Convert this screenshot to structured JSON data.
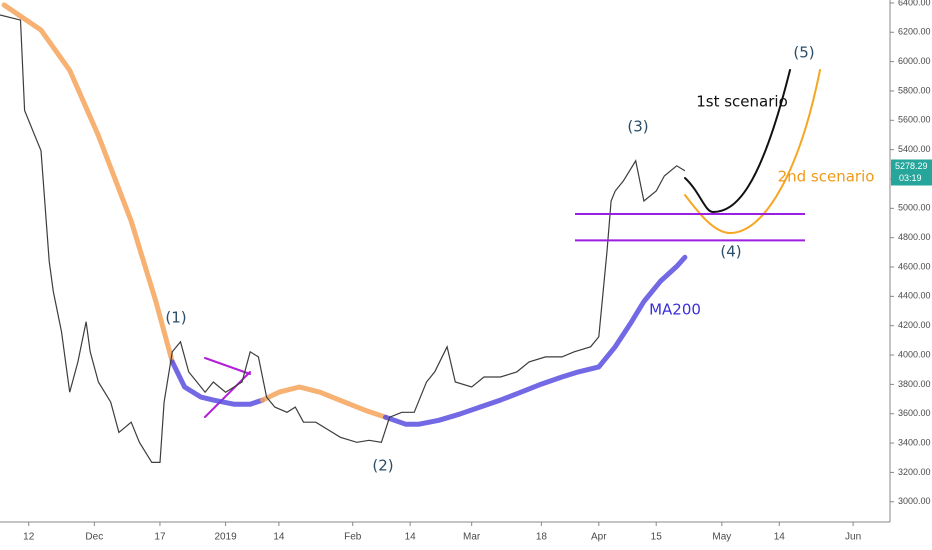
{
  "chart_data": {
    "type": "line",
    "xlim": [
      0,
      217
    ],
    "xticks": [
      {
        "value": 7,
        "label": "12"
      },
      {
        "value": 23,
        "label": "Dec"
      },
      {
        "value": 39,
        "label": "17"
      },
      {
        "value": 55,
        "label": "2019"
      },
      {
        "value": 68,
        "label": "14"
      },
      {
        "value": 86,
        "label": "Feb"
      },
      {
        "value": 100,
        "label": "14"
      },
      {
        "value": 115,
        "label": "Mar"
      },
      {
        "value": 132,
        "label": "18"
      },
      {
        "value": 146,
        "label": "Apr"
      },
      {
        "value": 160,
        "label": "15"
      },
      {
        "value": 176,
        "label": "May"
      },
      {
        "value": 190,
        "label": "14"
      },
      {
        "value": 208,
        "label": "Jun"
      }
    ],
    "ylim": [
      2862,
      6420
    ],
    "yticks": [
      {
        "value": 3000,
        "label": "3000.00"
      },
      {
        "value": 3200,
        "label": "3200.00"
      },
      {
        "value": 3400,
        "label": "3400.00"
      },
      {
        "value": 3600,
        "label": "3600.00"
      },
      {
        "value": 3800,
        "label": "3800.00"
      },
      {
        "value": 4000,
        "label": "4000.00"
      },
      {
        "value": 4200,
        "label": "4200.00"
      },
      {
        "value": 4400,
        "label": "4400.00"
      },
      {
        "value": 4600,
        "label": "4600.00"
      },
      {
        "value": 4800,
        "label": "4800.00"
      },
      {
        "value": 5000,
        "label": "5000.00"
      },
      {
        "value": 5200,
        "label": "5200.00"
      },
      {
        "value": 5400,
        "label": "5400.00"
      },
      {
        "value": 5600,
        "label": "5600.00"
      },
      {
        "value": 5800,
        "label": "5800.00"
      },
      {
        "value": 6000,
        "label": "6000.00"
      },
      {
        "value": 6200,
        "label": "6200.00"
      },
      {
        "value": 6400,
        "label": "6400.00"
      }
    ],
    "price": {
      "color": "#3d3d3d",
      "x": [
        0,
        5,
        6,
        9,
        10,
        12,
        13,
        15,
        17,
        19,
        21,
        22,
        24,
        27,
        29,
        32,
        34,
        37,
        39,
        40,
        42,
        44,
        46,
        48,
        50,
        52,
        55,
        59,
        61,
        63,
        65,
        67,
        70,
        72,
        74,
        77,
        79,
        83,
        87,
        90,
        93,
        95,
        98,
        101,
        104,
        106,
        109,
        111,
        115,
        118,
        122,
        126,
        129,
        133,
        137,
        140,
        144,
        146,
        148,
        149,
        150,
        152,
        155,
        157,
        160,
        162,
        165,
        167
      ],
      "values": [
        6318,
        6283,
        5667,
        5461,
        5393,
        4639,
        4433,
        4159,
        3747,
        3953,
        4227,
        4022,
        3816,
        3679,
        3473,
        3542,
        3405,
        3268,
        3268,
        3679,
        4022,
        4090,
        3885,
        3816,
        3747,
        3816,
        3747,
        3816,
        4022,
        3987,
        3713,
        3645,
        3610,
        3645,
        3542,
        3542,
        3508,
        3439,
        3405,
        3419,
        3405,
        3576,
        3610,
        3610,
        3816,
        3885,
        4056,
        3816,
        3782,
        3850,
        3850,
        3885,
        3953,
        3987,
        3987,
        4022,
        4056,
        4125,
        4707,
        5050,
        5118,
        5187,
        5324,
        5050,
        5118,
        5221,
        5290,
        5256
      ]
    },
    "ma": [
      {
        "color": "#f5a35a",
        "x": [
          1,
          10,
          17,
          24,
          32,
          38,
          42
        ],
        "values": [
          6386,
          6215,
          5941,
          5496,
          4913,
          4365,
          3953
        ]
      },
      {
        "color": "#5a4fe0",
        "x": [
          42,
          45,
          49,
          52,
          57,
          61,
          64
        ],
        "values": [
          3953,
          3782,
          3713,
          3693,
          3665,
          3665,
          3693
        ]
      },
      {
        "color": "#f5a35a",
        "x": [
          64,
          68,
          73,
          78,
          84,
          89,
          94
        ],
        "values": [
          3693,
          3747,
          3782,
          3747,
          3679,
          3624,
          3576
        ]
      },
      {
        "color": "#5a4fe0",
        "x": [
          94,
          99,
          102,
          107,
          112,
          117,
          122,
          127,
          132,
          137,
          141,
          146,
          150,
          154,
          157,
          161,
          165,
          167
        ],
        "values": [
          3576,
          3528,
          3528,
          3555,
          3597,
          3645,
          3693,
          3747,
          3802,
          3850,
          3885,
          3919,
          4056,
          4227,
          4365,
          4502,
          4604,
          4666
        ]
      }
    ],
    "levels": [
      4961,
      4782
    ],
    "level_color": "#9b1fe0",
    "last_price": 5278.29,
    "countdown": "03:19",
    "annotations": [
      "(1)",
      "(2)",
      "(3)",
      "(4)",
      "(5)",
      "MA200",
      "1st scenario",
      "2nd scenario"
    ]
  }
}
